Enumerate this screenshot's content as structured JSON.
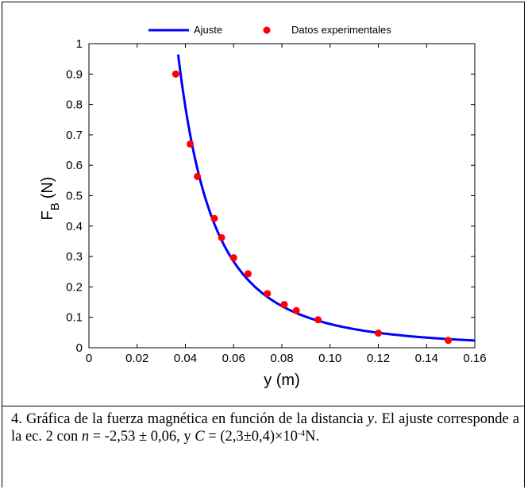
{
  "chart_data": {
    "type": "scatter",
    "xlabel": "y (m)",
    "ylabel_main": "F",
    "ylabel_sub": "B",
    "ylabel_unit": "(N)",
    "xlim": [
      0,
      0.16
    ],
    "ylim": [
      0,
      1
    ],
    "xticks": [
      "0",
      "0.02",
      "0.04",
      "0.06",
      "0.08",
      "0.10",
      "0.12",
      "0.14",
      "0.16"
    ],
    "yticks": [
      "0",
      "0.1",
      "0.2",
      "0.3",
      "0.4",
      "0.5",
      "0.6",
      "0.7",
      "0.8",
      "0.9",
      "1"
    ],
    "legend": {
      "placement": "top",
      "fit_label": "Ajuste",
      "data_label": "Datos experimentales"
    },
    "series": [
      {
        "name": "Datos experimentales",
        "kind": "points",
        "color": "#ff0000",
        "points": [
          {
            "x": 0.036,
            "y": 0.9
          },
          {
            "x": 0.042,
            "y": 0.67
          },
          {
            "x": 0.045,
            "y": 0.563
          },
          {
            "x": 0.052,
            "y": 0.425
          },
          {
            "x": 0.055,
            "y": 0.362
          },
          {
            "x": 0.06,
            "y": 0.296
          },
          {
            "x": 0.066,
            "y": 0.243
          },
          {
            "x": 0.074,
            "y": 0.178
          },
          {
            "x": 0.081,
            "y": 0.142
          },
          {
            "x": 0.086,
            "y": 0.122
          },
          {
            "x": 0.095,
            "y": 0.092
          },
          {
            "x": 0.12,
            "y": 0.048
          },
          {
            "x": 0.149,
            "y": 0.024
          }
        ]
      },
      {
        "name": "Ajuste",
        "kind": "line",
        "color": "#0000ff",
        "model": {
          "n": -2.53,
          "C": 0.00023,
          "x_start": 0.037,
          "x_end": 0.16
        }
      }
    ]
  },
  "caption": {
    "number": "4.",
    "text1": "Gráfica de la fuerza magnética en función de la distancia",
    "var_y": "y",
    "text2": ". El ajuste corresponde a la ec. 2 con",
    "var_n": "n",
    "text3": "= -2,53 ± 0,06, y",
    "var_C": "C",
    "text4": "= (2,3±0,4)×10",
    "exp": "-4",
    "unit": "N."
  }
}
